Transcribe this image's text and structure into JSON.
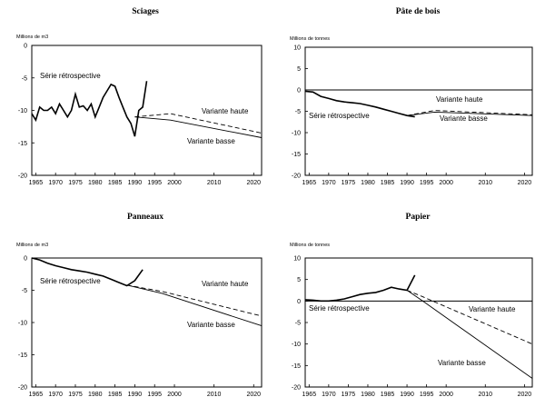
{
  "chart_data": [
    {
      "type": "line",
      "title": "Sciages",
      "ylabel": "Millions de m3",
      "ylim": [
        -20,
        0
      ],
      "xlim": [
        1964,
        2022
      ],
      "yticks": [
        "0",
        "-5",
        "-10",
        "-15",
        "-20"
      ],
      "xticks": [
        "1965",
        "1970",
        "1975",
        "1980",
        "1985",
        "1990",
        "1995",
        "2000",
        "2010",
        "2020"
      ],
      "series": [
        {
          "name": "Série rétrospective",
          "style": "solid",
          "x": [
            1964,
            1965,
            1966,
            1967,
            1968,
            1969,
            1970,
            1971,
            1972,
            1973,
            1974,
            1975,
            1976,
            1977,
            1978,
            1979,
            1980,
            1981,
            1982,
            1983,
            1984,
            1985,
            1986,
            1987,
            1988,
            1989,
            1990,
            1991,
            1992,
            1993
          ],
          "y": [
            -10.5,
            -11.5,
            -9.5,
            -10,
            -10,
            -9.5,
            -10.5,
            -9,
            -10,
            -11,
            -10,
            -7.5,
            -9.5,
            -9.3,
            -10,
            -9,
            -11,
            -9.5,
            -8,
            -7,
            -6,
            -6.3,
            -8,
            -9.5,
            -11,
            -12,
            -14,
            -10,
            -9.5,
            -5.5
          ]
        },
        {
          "name": "Variante haute",
          "style": "dashed",
          "x": [
            1990,
            1999,
            2022
          ],
          "y": [
            -11,
            -10.5,
            -13.5
          ]
        },
        {
          "name": "Variante basse",
          "style": "solid",
          "x": [
            1990,
            1999,
            2022
          ],
          "y": [
            -11,
            -11.5,
            -14.2
          ]
        }
      ],
      "annotations": [
        "Série rétrospective",
        "Variante haute",
        "Variante basse"
      ]
    },
    {
      "type": "line",
      "title": "Pâte de bois",
      "ylabel": "Millions de tonnes",
      "ylim": [
        -20,
        10
      ],
      "xlim": [
        1964,
        2022
      ],
      "yticks": [
        "10",
        "5",
        "0",
        "-5",
        "-10",
        "-15",
        "-20"
      ],
      "xticks": [
        "1965",
        "1970",
        "1975",
        "1980",
        "1985",
        "1990",
        "1995",
        "2000",
        "2010",
        "2020"
      ],
      "series": [
        {
          "name": "Série rétrospective",
          "style": "solid",
          "x": [
            1964,
            1966,
            1968,
            1970,
            1972,
            1974,
            1976,
            1978,
            1980,
            1982,
            1984,
            1986,
            1988,
            1990,
            1992
          ],
          "y": [
            -0.3,
            -0.5,
            -1.5,
            -2,
            -2.5,
            -2.8,
            -3,
            -3.2,
            -3.6,
            -4,
            -4.5,
            -5,
            -5.5,
            -6,
            -6.3
          ]
        },
        {
          "name": "Variante haute",
          "style": "dashed",
          "x": [
            1990,
            1997,
            2022
          ],
          "y": [
            -6,
            -4.8,
            -5.8
          ]
        },
        {
          "name": "Variante basse",
          "style": "solid",
          "x": [
            1990,
            1997,
            2022
          ],
          "y": [
            -6,
            -5.2,
            -6
          ]
        }
      ],
      "annotations": [
        "Série rétrospective",
        "Variante haute",
        "Variante basse"
      ]
    },
    {
      "type": "line",
      "title": "Panneaux",
      "ylabel": "Millions de m3",
      "ylim": [
        -20,
        0
      ],
      "xlim": [
        1964,
        2022
      ],
      "yticks": [
        "0",
        "-5",
        "-10",
        "-15",
        "-20"
      ],
      "xticks": [
        "1965",
        "1970",
        "1975",
        "1980",
        "1985",
        "1990",
        "1995",
        "2000",
        "2010",
        "2020"
      ],
      "series": [
        {
          "name": "Série rétrospective",
          "style": "solid",
          "x": [
            1964,
            1966,
            1968,
            1970,
            1972,
            1974,
            1976,
            1978,
            1980,
            1982,
            1984,
            1986,
            1988,
            1990,
            1992
          ],
          "y": [
            0,
            -0.3,
            -0.8,
            -1.2,
            -1.5,
            -1.8,
            -2,
            -2.2,
            -2.5,
            -2.8,
            -3.3,
            -3.8,
            -4.3,
            -3.5,
            -1.8
          ]
        },
        {
          "name": "Variante haute",
          "style": "dashed",
          "x": [
            1988,
            1997,
            2022
          ],
          "y": [
            -4.2,
            -5.2,
            -9
          ]
        },
        {
          "name": "Variante basse",
          "style": "solid",
          "x": [
            1988,
            1997,
            2022
          ],
          "y": [
            -4.2,
            -5.5,
            -10.5
          ]
        }
      ],
      "annotations": [
        "Série rétrospective",
        "Variante haute",
        "Variante basse"
      ]
    },
    {
      "type": "line",
      "title": "Papier",
      "ylabel": "Millions de tonnes",
      "ylim": [
        -20,
        10
      ],
      "xlim": [
        1964,
        2022
      ],
      "yticks": [
        "10",
        "5",
        "0",
        "-5",
        "-10",
        "-15",
        "-20"
      ],
      "xticks": [
        "1965",
        "1970",
        "1975",
        "1980",
        "1985",
        "1990",
        "1995",
        "2000",
        "2010",
        "2020"
      ],
      "series": [
        {
          "name": "Série rétrospective",
          "style": "solid",
          "x": [
            1964,
            1966,
            1968,
            1970,
            1972,
            1974,
            1976,
            1978,
            1980,
            1982,
            1984,
            1986,
            1988,
            1990,
            1992
          ],
          "y": [
            0.3,
            0.2,
            0,
            0,
            0.2,
            0.5,
            1,
            1.5,
            1.8,
            2,
            2.5,
            3.2,
            2.8,
            2.5,
            6
          ]
        },
        {
          "name": "Variante haute",
          "style": "dashed",
          "x": [
            1990,
            1994,
            2022
          ],
          "y": [
            2.5,
            1,
            -10
          ]
        },
        {
          "name": "Variante basse",
          "style": "solid",
          "x": [
            1990,
            1994,
            2022
          ],
          "y": [
            2.5,
            0,
            -18
          ]
        }
      ],
      "annotations": [
        "Série rétrospective",
        "Variante haute",
        "Variante basse"
      ]
    }
  ]
}
